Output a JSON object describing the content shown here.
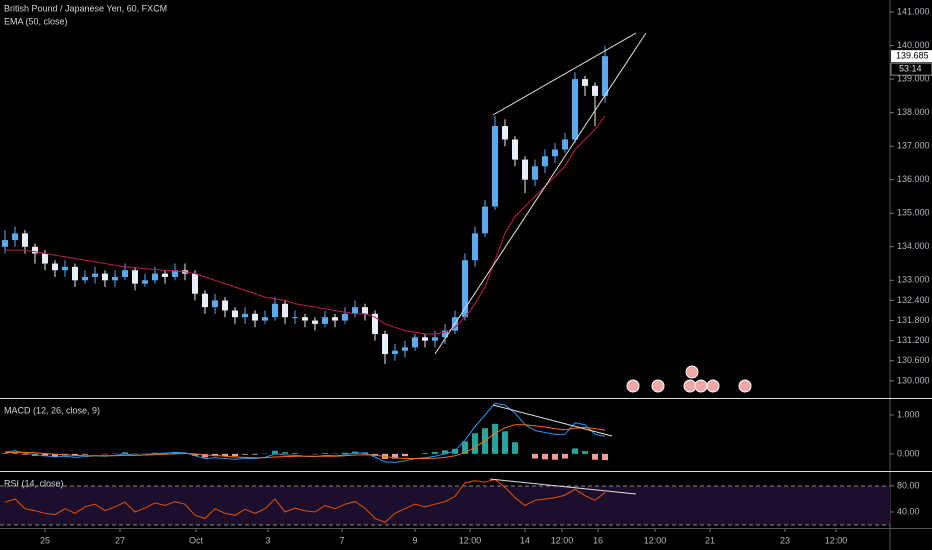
{
  "chart_data": [
    {
      "type": "candlestick",
      "title": "British Pound / Japanese Yen, 60, FXCM",
      "xlim": [
        -0.5,
        88.5
      ],
      "xticks": [
        {
          "value": 4,
          "label": "25"
        },
        {
          "value": 11.5,
          "label": "27"
        },
        {
          "value": 19.1,
          "label": "Oct"
        },
        {
          "value": 26.3,
          "label": "3"
        },
        {
          "value": 33.7,
          "label": "7"
        },
        {
          "value": 41,
          "label": "9"
        },
        {
          "value": 46.5,
          "label": "12:00"
        },
        {
          "value": 52,
          "label": "14"
        },
        {
          "value": 55.7,
          "label": "12:00"
        },
        {
          "value": 59.3,
          "label": "16"
        },
        {
          "value": 65,
          "label": "12:00"
        },
        {
          "value": 70.5,
          "label": "21"
        },
        {
          "value": 78,
          "label": "23"
        },
        {
          "value": 83.1,
          "label": "12:00"
        }
      ],
      "ylim": [
        129.49,
        141.36
      ],
      "yticks": [
        {
          "value": 141,
          "label": "141.000"
        },
        {
          "value": 140,
          "label": "140.000"
        },
        {
          "value": 139,
          "label": "139.000"
        },
        {
          "value": 138,
          "label": "138.000"
        },
        {
          "value": 137,
          "label": "137.000"
        },
        {
          "value": 136,
          "label": "136.000"
        },
        {
          "value": 135,
          "label": "135.000"
        },
        {
          "value": 134,
          "label": "134.000"
        },
        {
          "value": 133,
          "label": "133.000"
        },
        {
          "value": 132.4,
          "label": "132.400"
        },
        {
          "value": 131.8,
          "label": "131.800"
        },
        {
          "value": 131.2,
          "label": "131.200"
        },
        {
          "value": 130.6,
          "label": "130.600"
        },
        {
          "value": 130,
          "label": "130.000"
        }
      ],
      "colors": {
        "up": "#5aaaf0",
        "down": "#e8eef5"
      },
      "open": [
        134.0,
        134.2,
        134.4,
        134.0,
        133.8,
        133.5,
        133.3,
        133.4,
        133.0,
        133.1,
        133.2,
        133.0,
        133.1,
        133.3,
        132.9,
        133.0,
        133.2,
        133.1,
        133.3,
        133.2,
        132.6,
        132.2,
        132.4,
        132.1,
        131.9,
        132.0,
        131.8,
        131.9,
        132.3,
        131.9,
        131.9,
        131.8,
        131.7,
        131.9,
        131.8,
        132.0,
        132.2,
        132.0,
        131.4,
        130.8,
        130.9,
        131.0,
        131.3,
        131.2,
        131.3,
        131.5,
        131.9,
        133.6,
        134.4,
        135.2,
        137.6,
        137.2,
        136.6,
        136.0,
        136.4,
        136.7,
        136.9,
        137.2,
        139.0,
        138.8,
        138.5
      ],
      "high": [
        134.5,
        134.6,
        134.5,
        134.1,
        133.9,
        133.6,
        133.6,
        133.5,
        133.3,
        133.4,
        133.3,
        133.3,
        133.5,
        133.4,
        133.2,
        133.4,
        133.3,
        133.5,
        133.5,
        133.3,
        132.7,
        132.6,
        132.5,
        132.2,
        132.2,
        132.1,
        132.1,
        132.5,
        132.4,
        132.1,
        132.0,
        131.9,
        132.1,
        132.0,
        132.2,
        132.4,
        132.3,
        132.1,
        131.5,
        131.1,
        131.2,
        131.4,
        131.4,
        131.5,
        131.7,
        132.1,
        133.8,
        134.6,
        135.4,
        137.9,
        137.8,
        137.3,
        136.7,
        136.6,
        136.9,
        137.1,
        137.4,
        139.2,
        139.1,
        138.9,
        140.0
      ],
      "low": [
        133.8,
        134.0,
        133.8,
        133.5,
        133.3,
        133.1,
        133.1,
        132.8,
        132.9,
        132.9,
        132.8,
        132.8,
        133.0,
        132.7,
        132.8,
        132.9,
        132.9,
        133.0,
        133.0,
        132.4,
        132.0,
        132.0,
        131.9,
        131.7,
        131.7,
        131.6,
        131.7,
        131.8,
        131.7,
        131.7,
        131.6,
        131.5,
        131.6,
        131.6,
        131.7,
        131.9,
        131.8,
        131.2,
        130.5,
        130.6,
        130.7,
        130.9,
        131.0,
        131.0,
        131.1,
        131.4,
        131.8,
        133.4,
        134.3,
        135.1,
        137.0,
        136.4,
        135.6,
        135.8,
        136.2,
        136.5,
        136.8,
        137.1,
        138.5,
        137.6,
        138.3
      ],
      "close": [
        134.2,
        134.4,
        134.0,
        133.8,
        133.5,
        133.3,
        133.4,
        133.0,
        133.1,
        133.2,
        133.0,
        133.1,
        133.3,
        132.9,
        133.0,
        133.2,
        133.1,
        133.3,
        133.2,
        132.6,
        132.2,
        132.4,
        132.1,
        131.9,
        132.0,
        131.8,
        131.9,
        132.3,
        131.9,
        131.9,
        131.8,
        131.7,
        131.9,
        131.8,
        132.0,
        132.2,
        132.0,
        131.4,
        130.8,
        130.9,
        131.0,
        131.3,
        131.2,
        131.3,
        131.5,
        131.9,
        133.6,
        134.4,
        135.2,
        137.6,
        137.2,
        136.6,
        136.0,
        136.4,
        136.7,
        136.9,
        137.2,
        139.0,
        138.8,
        138.5,
        139.685
      ],
      "series": [
        {
          "name": "EMA (50, close)",
          "color": "#c2185b",
          "values": [
            133.9,
            133.9,
            133.9,
            133.85,
            133.8,
            133.75,
            133.7,
            133.65,
            133.6,
            133.55,
            133.5,
            133.45,
            133.4,
            133.38,
            133.35,
            133.32,
            133.3,
            133.28,
            133.25,
            133.2,
            133.1,
            133.0,
            132.9,
            132.8,
            132.7,
            132.6,
            132.5,
            132.45,
            132.4,
            132.3,
            132.25,
            132.2,
            132.15,
            132.1,
            132.05,
            132.0,
            132.0,
            131.9,
            131.7,
            131.6,
            131.5,
            131.45,
            131.4,
            131.4,
            131.45,
            131.6,
            131.9,
            132.3,
            132.8,
            133.6,
            134.4,
            134.9,
            135.2,
            135.5,
            135.8,
            136.1,
            136.4,
            136.9,
            137.2,
            137.5,
            137.9
          ]
        }
      ],
      "last_price": 139.685,
      "countdown": "53:14"
    },
    {
      "type": "macd",
      "title": "MACD (12, 26, close, 9)",
      "ylim": [
        -0.44,
        1.41
      ],
      "yticks": [
        {
          "value": 1,
          "label": "1.000"
        },
        {
          "value": 0,
          "label": "0.000"
        }
      ],
      "macd": {
        "color": "#2196f3",
        "values": [
          0.05,
          0.08,
          0.02,
          -0.02,
          -0.05,
          -0.08,
          -0.06,
          -0.09,
          -0.07,
          -0.05,
          -0.06,
          -0.04,
          0.0,
          -0.03,
          -0.02,
          0.01,
          0.02,
          0.04,
          0.03,
          -0.05,
          -0.12,
          -0.1,
          -0.12,
          -0.14,
          -0.11,
          -0.12,
          -0.09,
          0.0,
          -0.03,
          -0.04,
          -0.06,
          -0.07,
          -0.04,
          -0.05,
          -0.02,
          0.03,
          0.02,
          -0.08,
          -0.2,
          -0.22,
          -0.18,
          -0.12,
          -0.1,
          -0.06,
          0.0,
          0.08,
          0.35,
          0.7,
          1.0,
          1.3,
          1.25,
          1.05,
          0.75,
          0.6,
          0.55,
          0.5,
          0.5,
          0.8,
          0.75,
          0.5,
          0.45
        ]
      },
      "signal": {
        "color": "#ff6d00",
        "values": [
          0.03,
          0.04,
          0.04,
          0.03,
          0.01,
          -0.01,
          -0.02,
          -0.04,
          -0.05,
          -0.05,
          -0.05,
          -0.05,
          -0.04,
          -0.04,
          -0.03,
          -0.02,
          -0.01,
          0.0,
          0.01,
          0.0,
          -0.03,
          -0.04,
          -0.06,
          -0.08,
          -0.09,
          -0.1,
          -0.1,
          -0.08,
          -0.07,
          -0.06,
          -0.06,
          -0.06,
          -0.06,
          -0.06,
          -0.05,
          -0.03,
          -0.02,
          -0.03,
          -0.07,
          -0.1,
          -0.12,
          -0.12,
          -0.12,
          -0.11,
          -0.09,
          -0.05,
          0.03,
          0.17,
          0.34,
          0.53,
          0.67,
          0.75,
          0.75,
          0.72,
          0.69,
          0.65,
          0.62,
          0.66,
          0.68,
          0.65,
          0.61
        ]
      },
      "histogram": {
        "colors": {
          "up": "#26a69a",
          "down": "#ef9a9a"
        },
        "values": [
          0.02,
          0.04,
          -0.02,
          -0.05,
          -0.06,
          -0.07,
          -0.04,
          -0.05,
          -0.02,
          0.0,
          -0.01,
          0.01,
          0.04,
          0.01,
          0.01,
          0.03,
          0.03,
          0.04,
          0.02,
          -0.05,
          -0.09,
          -0.06,
          -0.06,
          -0.06,
          -0.02,
          -0.02,
          0.01,
          0.08,
          0.04,
          0.02,
          0.0,
          -0.01,
          0.02,
          0.01,
          0.03,
          0.06,
          0.04,
          -0.05,
          -0.13,
          -0.12,
          -0.06,
          0.0,
          0.02,
          0.05,
          0.09,
          0.13,
          0.32,
          0.53,
          0.66,
          0.77,
          0.58,
          0.3,
          0.0,
          -0.12,
          -0.14,
          -0.15,
          -0.12,
          0.14,
          0.07,
          -0.15,
          -0.16
        ]
      }
    },
    {
      "type": "rsi",
      "title": "RSI (14, close)",
      "ylim": [
        15.4,
        101.5
      ],
      "yticks": [
        {
          "value": 80,
          "label": "80.00"
        },
        {
          "value": 40,
          "label": "40.00"
        }
      ],
      "bands": [
        20,
        80
      ],
      "color": "#e65100",
      "values": [
        55,
        60,
        45,
        42,
        38,
        36,
        45,
        38,
        48,
        52,
        42,
        48,
        55,
        40,
        46,
        54,
        50,
        56,
        52,
        35,
        30,
        45,
        38,
        35,
        44,
        38,
        45,
        60,
        40,
        46,
        42,
        40,
        50,
        45,
        52,
        56,
        46,
        30,
        24,
        38,
        45,
        52,
        48,
        52,
        56,
        64,
        85,
        88,
        86,
        90,
        78,
        62,
        50,
        58,
        60,
        62,
        66,
        75,
        65,
        58,
        70
      ]
    }
  ]
}
